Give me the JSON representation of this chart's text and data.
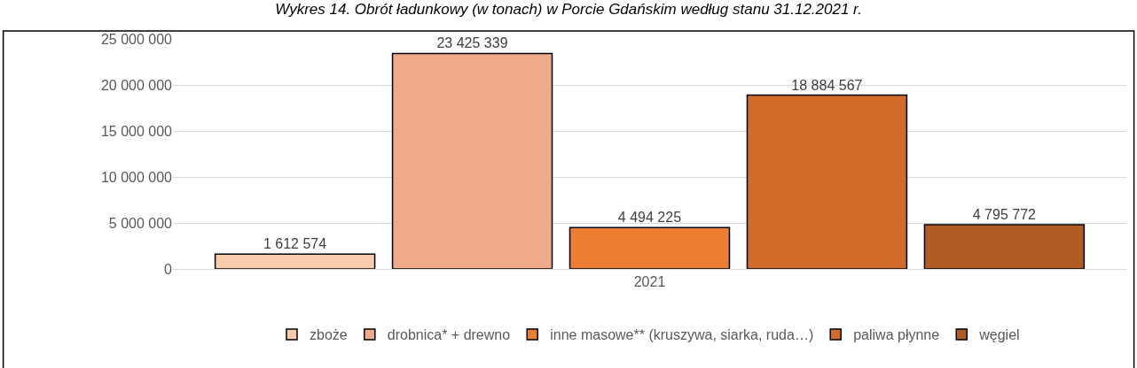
{
  "chart_data": {
    "type": "bar",
    "title": "Wykres 14. Obrót ładunkowy (w tonach) w Porcie Gdańskim według stanu 31.12.2021 r.",
    "categories": [
      "2021"
    ],
    "series": [
      {
        "name": "zboże",
        "color": "#f8cbad",
        "values": [
          1612574
        ],
        "value_labels": [
          "1 612 574"
        ]
      },
      {
        "name": "drobnica* + drewno",
        "color": "#f0a98a",
        "values": [
          23425339
        ],
        "value_labels": [
          "23 425 339"
        ]
      },
      {
        "name": "inne masowe** (kruszywa, siarka, ruda…)",
        "color": "#ed7d31",
        "values": [
          4494225
        ],
        "value_labels": [
          "4 494 225"
        ]
      },
      {
        "name": "paliwa płynne",
        "color": "#d26b2a",
        "values": [
          18884567
        ],
        "value_labels": [
          "18 884 567"
        ]
      },
      {
        "name": "węgiel",
        "color": "#b05c22",
        "values": [
          4795772
        ],
        "value_labels": [
          "4 795 772"
        ]
      }
    ],
    "ylim": [
      0,
      25000000
    ],
    "yticks": [
      {
        "value": 0,
        "label": "0"
      },
      {
        "value": 5000000,
        "label": "5 000 000"
      },
      {
        "value": 10000000,
        "label": "10 000 000"
      },
      {
        "value": 15000000,
        "label": "15 000 000"
      },
      {
        "value": 20000000,
        "label": "20 000 000"
      },
      {
        "value": 25000000,
        "label": "25 000 000"
      }
    ],
    "grid": "y",
    "legend": "bottom"
  }
}
